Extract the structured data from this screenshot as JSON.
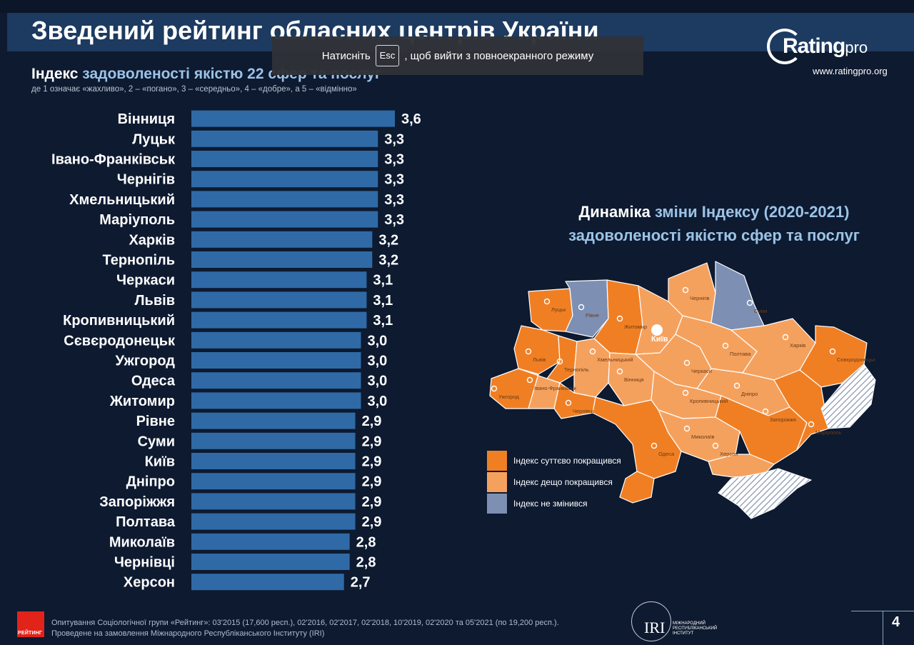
{
  "fullscreen_notice": {
    "before": "Натисніть",
    "key": "Esc",
    "after": ", щоб вийти з повноекранного режиму"
  },
  "slide": {
    "title": "Зведений рейтинг обласних центрів України",
    "subtitle_strong": "Індекс",
    "subtitle_rest": " задоволеності якістю 22 сфер та послуг",
    "scale_note": "де 1 означає «жахливо», 2 – «погано», 3 – «середньо», 4 – «добре», а 5 – «відмінно»",
    "logo_word": "Rating",
    "logo_suffix": "pro",
    "logo_url": "www.ratingpro.org",
    "map_title_strong": "Динаміка",
    "map_title_rest": " зміни Індексу (2020-2021)",
    "map_title_line2": "задоволеності якістю сфер та послуг",
    "legend": [
      {
        "label": "Індекс суттєво покращився",
        "color": "#f07f24"
      },
      {
        "label": "Індекс дещо покращився",
        "color": "#f5a15e"
      },
      {
        "label": "Індекс не змінився",
        "color": "#7d8fb3"
      }
    ],
    "footer_logo_text": "РЕЙТИНГ",
    "footer_line1": "Опитування Соціологічної групи «Рейтинг»: 03'2015 (17,600 респ.), 02'2016, 02'2017, 02'2018, 10'2019, 02'2020 та 05'2021 (по 19,200 респ.).",
    "footer_line2": "Проведене на замовлення Міжнародного Республіканського Інституту (IRI)",
    "iri_text": "IRI",
    "iri_sub": "МІЖНАРОДНИЙ\nРЕСПУБЛІКАНСЬКИЙ\nІНСТИТУТ",
    "page_number": "4"
  },
  "chart_data": {
    "type": "bar",
    "orientation": "horizontal",
    "bar_color": "#2f6aa6",
    "categories": [
      "Вінниця",
      "Луцьк",
      "Івано-Франківськ",
      "Чернігів",
      "Хмельницький",
      "Маріуполь",
      "Харків",
      "Тернопіль",
      "Черкаси",
      "Львів",
      "Кропивницький",
      "Сєвєродонецьк",
      "Ужгород",
      "Одеса",
      "Житомир",
      "Рівне",
      "Суми",
      "Київ",
      "Дніпро",
      "Запоріжжя",
      "Полтава",
      "Миколаїв",
      "Чернівці",
      "Херсон"
    ],
    "values": [
      3.6,
      3.3,
      3.3,
      3.3,
      3.3,
      3.3,
      3.2,
      3.2,
      3.1,
      3.1,
      3.1,
      3.0,
      3.0,
      3.0,
      3.0,
      2.9,
      2.9,
      2.9,
      2.9,
      2.9,
      2.9,
      2.8,
      2.8,
      2.7
    ],
    "value_labels": [
      "3,6",
      "3,3",
      "3,3",
      "3,3",
      "3,3",
      "3,3",
      "3,2",
      "3,2",
      "3,1",
      "3,1",
      "3,1",
      "3,0",
      "3,0",
      "3,0",
      "3,0",
      "2,9",
      "2,9",
      "2,9",
      "2,9",
      "2,9",
      "2,9",
      "2,8",
      "2,8",
      "2,7"
    ]
  },
  "map": {
    "colors": {
      "significant": "#f07f24",
      "slight": "#f5a15e",
      "unchanged": "#7d8fb3",
      "occupied": "#dfe4ec",
      "border": "#ffffff"
    },
    "regions": [
      {
        "name": "Луцьк",
        "status": "significant"
      },
      {
        "name": "Рівне",
        "status": "unchanged"
      },
      {
        "name": "Житомир",
        "status": "significant"
      },
      {
        "name": "Київ",
        "status": "slight"
      },
      {
        "name": "Чернігів",
        "status": "slight"
      },
      {
        "name": "Суми",
        "status": "unchanged"
      },
      {
        "name": "Львів",
        "status": "significant"
      },
      {
        "name": "Тернопіль",
        "status": "significant"
      },
      {
        "name": "Хмельницький",
        "status": "slight"
      },
      {
        "name": "Вінниця",
        "status": "slight"
      },
      {
        "name": "Черкаси",
        "status": "slight"
      },
      {
        "name": "Полтава",
        "status": "slight"
      },
      {
        "name": "Харків",
        "status": "slight"
      },
      {
        "name": "Сєвєродонецьк",
        "status": "significant"
      },
      {
        "name": "Ужгород",
        "status": "significant"
      },
      {
        "name": "Івано-Франківськ",
        "status": "slight"
      },
      {
        "name": "Чернівці",
        "status": "significant"
      },
      {
        "name": "Кропивницький",
        "status": "slight"
      },
      {
        "name": "Дніпро",
        "status": "slight"
      },
      {
        "name": "Запоріжжя",
        "status": "significant"
      },
      {
        "name": "Маріуполь",
        "status": "significant"
      },
      {
        "name": "Миколаїв",
        "status": "slight"
      },
      {
        "name": "Одеса",
        "status": "significant"
      },
      {
        "name": "Херсон",
        "status": "slight"
      }
    ]
  }
}
